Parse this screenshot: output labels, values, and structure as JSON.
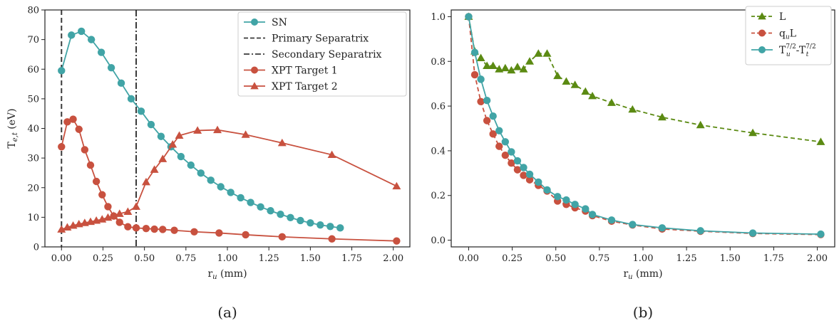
{
  "chart_data": [
    {
      "type": "line",
      "panel_label": "(a)",
      "xlabel": "r",
      "xlabel_sub": "u",
      "xlabel_unit": " (mm)",
      "ylabel": "T",
      "ylabel_sub": "e,t",
      "ylabel_unit": " (eV)",
      "xlim": [
        -0.1,
        2.1
      ],
      "ylim": [
        0,
        80
      ],
      "xticks": [
        "0.00",
        "0.25",
        "0.50",
        "0.75",
        "1.00",
        "1.25",
        "1.50",
        "1.75",
        "2.00"
      ],
      "yticks": [
        "0",
        "10",
        "20",
        "30",
        "40",
        "50",
        "60",
        "70",
        "80"
      ],
      "legend_position": "top-right",
      "vlines": [
        {
          "name": "Primary Separatrix",
          "x": 0.0,
          "style": "dashed",
          "color": "#3a3a3a"
        },
        {
          "name": "Secondary Separatrix",
          "x": 0.45,
          "style": "dashdot",
          "color": "#3a3a3a"
        }
      ],
      "series": [
        {
          "name": "SN",
          "color": "#41a4a6",
          "marker": "circle",
          "dash": "solid",
          "x": [
            0.0,
            0.06,
            0.12,
            0.18,
            0.24,
            0.3,
            0.36,
            0.42,
            0.48,
            0.54,
            0.6,
            0.66,
            0.72,
            0.78,
            0.84,
            0.9,
            0.96,
            1.02,
            1.08,
            1.14,
            1.2,
            1.26,
            1.32,
            1.38,
            1.44,
            1.5,
            1.56,
            1.62,
            1.68
          ],
          "y": [
            59.5,
            71.5,
            72.8,
            70.0,
            65.7,
            60.5,
            55.3,
            50.0,
            45.8,
            41.3,
            37.3,
            33.8,
            30.5,
            27.6,
            24.9,
            22.5,
            20.3,
            18.4,
            16.6,
            15.0,
            13.5,
            12.2,
            11.0,
            9.9,
            8.9,
            8.1,
            7.4,
            6.9,
            6.4
          ]
        },
        {
          "name": "XPT Target 1",
          "color": "#c8513f",
          "marker": "circle",
          "dash": "solid",
          "x": [
            0.0,
            0.035,
            0.07,
            0.105,
            0.14,
            0.175,
            0.21,
            0.245,
            0.28,
            0.315,
            0.35,
            0.4,
            0.45,
            0.51,
            0.56,
            0.61,
            0.68,
            0.8,
            0.95,
            1.11,
            1.33,
            1.63,
            2.02
          ],
          "y": [
            33.8,
            42.2,
            43.1,
            39.7,
            32.8,
            27.6,
            22.1,
            17.6,
            13.6,
            10.4,
            8.3,
            6.8,
            6.4,
            6.2,
            6.0,
            5.9,
            5.6,
            5.1,
            4.7,
            4.1,
            3.4,
            2.7,
            2.0
          ]
        },
        {
          "name": "XPT Target 2",
          "color": "#c8513f",
          "marker": "triangle",
          "dash": "solid",
          "x": [
            0.0,
            0.035,
            0.07,
            0.105,
            0.14,
            0.175,
            0.21,
            0.245,
            0.28,
            0.315,
            0.35,
            0.4,
            0.45,
            0.51,
            0.56,
            0.61,
            0.67,
            0.71,
            0.82,
            0.94,
            1.11,
            1.33,
            1.63,
            2.02
          ],
          "y": [
            5.9,
            6.6,
            7.2,
            7.7,
            8.1,
            8.5,
            8.9,
            9.3,
            9.9,
            10.5,
            11.2,
            11.9,
            13.6,
            21.9,
            26.1,
            29.7,
            34.6,
            37.6,
            39.3,
            39.5,
            37.9,
            35.1,
            31.1,
            20.5
          ]
        }
      ]
    },
    {
      "type": "line",
      "panel_label": "(b)",
      "xlabel": "r",
      "xlabel_sub": "u",
      "xlabel_unit": " (mm)",
      "ylabel": "",
      "xlim": [
        -0.1,
        2.1
      ],
      "ylim": [
        -0.03,
        1.03
      ],
      "xticks": [
        "0.00",
        "0.25",
        "0.50",
        "0.75",
        "1.00",
        "1.25",
        "1.50",
        "1.75",
        "2.00"
      ],
      "yticks": [
        "0.0",
        "0.2",
        "0.4",
        "0.6",
        "0.8",
        "1.0"
      ],
      "legend_position": "top-right",
      "series": [
        {
          "name": "L",
          "color": "#5b8a12",
          "marker": "triangle",
          "dash": "dashed",
          "x": [
            0.0,
            0.035,
            0.07,
            0.105,
            0.14,
            0.175,
            0.21,
            0.245,
            0.28,
            0.315,
            0.35,
            0.4,
            0.45,
            0.51,
            0.56,
            0.61,
            0.67,
            0.71,
            0.82,
            0.94,
            1.11,
            1.33,
            1.63,
            2.02
          ],
          "y": [
            1.0,
            0.845,
            0.815,
            0.78,
            0.78,
            0.765,
            0.77,
            0.76,
            0.775,
            0.765,
            0.8,
            0.835,
            0.835,
            0.735,
            0.71,
            0.695,
            0.665,
            0.645,
            0.615,
            0.585,
            0.55,
            0.515,
            0.48,
            0.44
          ]
        },
        {
          "name": "q",
          "name_sub": "u",
          "name_rest": "L",
          "color": "#c8513f",
          "marker": "circle",
          "dash": "dashed",
          "x": [
            0.0,
            0.035,
            0.07,
            0.105,
            0.14,
            0.175,
            0.21,
            0.245,
            0.28,
            0.315,
            0.35,
            0.4,
            0.45,
            0.51,
            0.56,
            0.61,
            0.67,
            0.71,
            0.82,
            0.94,
            1.11,
            1.33,
            1.63,
            2.02
          ],
          "y": [
            1.0,
            0.74,
            0.62,
            0.535,
            0.475,
            0.42,
            0.38,
            0.345,
            0.315,
            0.29,
            0.27,
            0.245,
            0.22,
            0.175,
            0.16,
            0.145,
            0.13,
            0.11,
            0.085,
            0.068,
            0.05,
            0.04,
            0.03,
            0.025
          ]
        },
        {
          "name": "T",
          "name_sub": "u",
          "name_sup": "7/2",
          "name_rest": "-T",
          "name_sub2": "t",
          "name_sup2": "7/2",
          "color": "#41a4a6",
          "marker": "circle",
          "dash": "solid",
          "x": [
            0.0,
            0.035,
            0.07,
            0.105,
            0.14,
            0.175,
            0.21,
            0.245,
            0.28,
            0.315,
            0.35,
            0.4,
            0.45,
            0.51,
            0.56,
            0.61,
            0.67,
            0.71,
            0.82,
            0.94,
            1.11,
            1.33,
            1.63,
            2.02
          ],
          "y": [
            1.0,
            0.84,
            0.72,
            0.625,
            0.555,
            0.49,
            0.44,
            0.395,
            0.355,
            0.325,
            0.295,
            0.26,
            0.225,
            0.195,
            0.18,
            0.16,
            0.14,
            0.115,
            0.09,
            0.07,
            0.055,
            0.042,
            0.032,
            0.027
          ]
        }
      ]
    }
  ]
}
